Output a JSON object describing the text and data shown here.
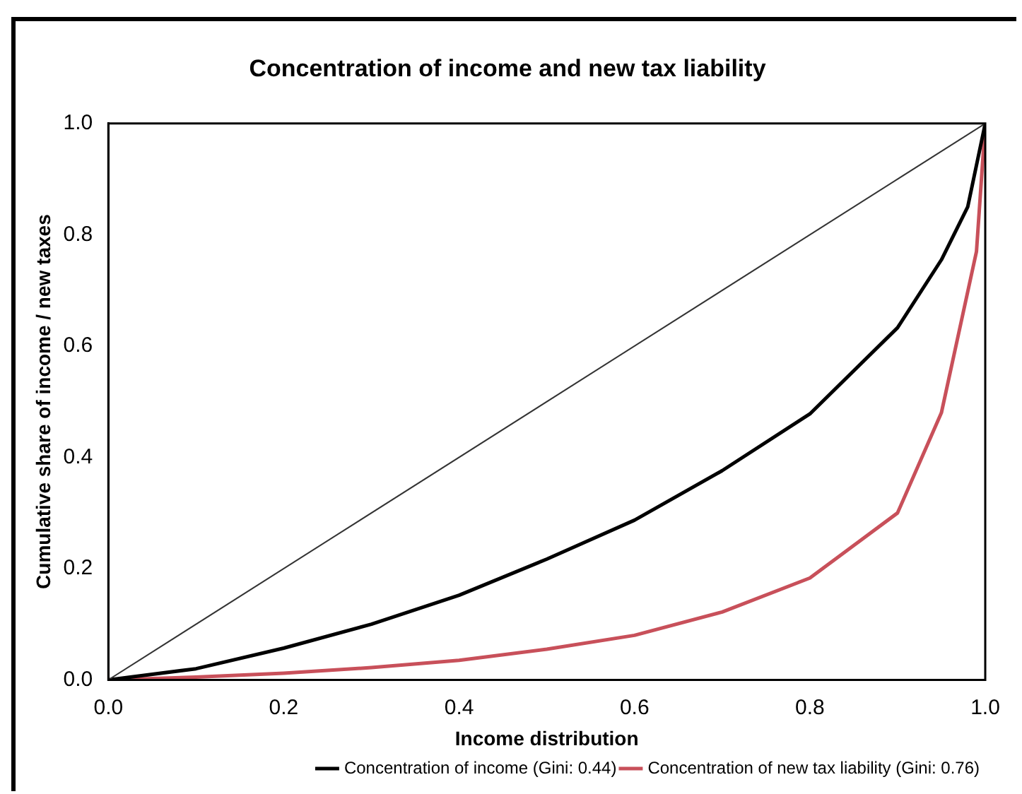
{
  "chart_data": {
    "type": "line",
    "title": "Concentration of income and new tax liability",
    "xlabel": "Income distribution",
    "ylabel": "Cumulative share of income / new taxes",
    "xlim": [
      0,
      1
    ],
    "ylim": [
      0,
      1
    ],
    "xticks": [
      {
        "value": 0,
        "label": "0.0"
      },
      0.2,
      0.4,
      0.6,
      0.8,
      {
        "value": 1,
        "label": "1.0"
      }
    ],
    "yticks": [
      {
        "value": 0,
        "label": "0.0"
      },
      0.2,
      0.4,
      0.6,
      0.8,
      {
        "value": 1,
        "label": "1.0"
      }
    ],
    "grid": false,
    "legend": "bottom right",
    "marker": "none",
    "line_style": "solid",
    "series": [
      {
        "color": "#333333",
        "x": [
          0,
          1
        ],
        "values": [
          0,
          1
        ]
      },
      {
        "name": "Concentration of income (Gini: 0.44)",
        "color": "#000000",
        "x": [
          0,
          0.1,
          0.2,
          0.3,
          0.4,
          0.5,
          0.6,
          0.7,
          0.8,
          0.9,
          0.95,
          0.98,
          1
        ],
        "values": [
          0,
          0.02,
          0.057,
          0.1,
          0.152,
          0.217,
          0.287,
          0.376,
          0.478,
          0.633,
          0.755,
          0.85,
          1
        ]
      },
      {
        "name": "Concentration of new tax liability (Gini: 0.76)",
        "color": "#c8505a",
        "x": [
          0,
          0.1,
          0.2,
          0.3,
          0.4,
          0.5,
          0.6,
          0.7,
          0.8,
          0.9,
          0.95,
          0.99,
          1
        ],
        "values": [
          0,
          0.005,
          0.012,
          0.022,
          0.035,
          0.055,
          0.08,
          0.122,
          0.183,
          0.3,
          0.48,
          0.77,
          1
        ]
      }
    ]
  }
}
